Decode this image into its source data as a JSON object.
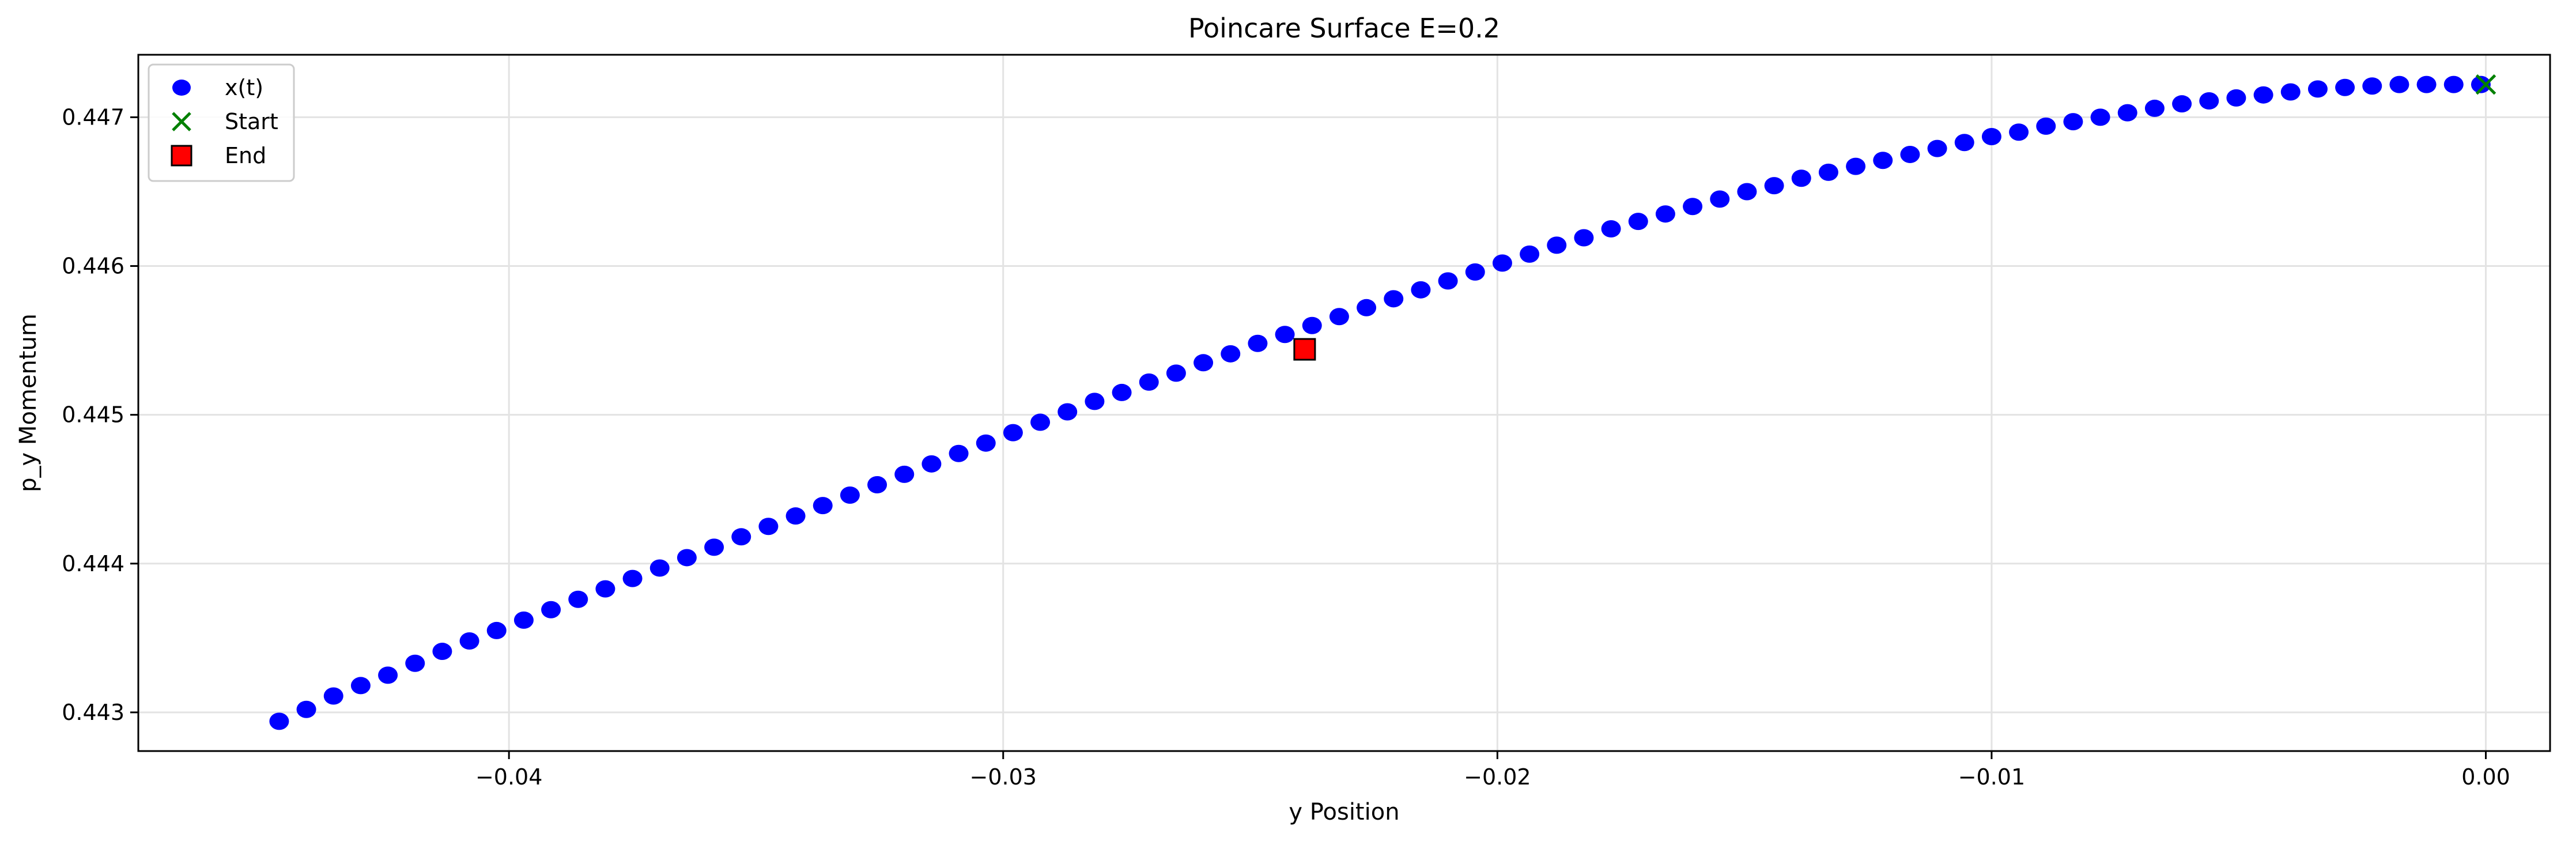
{
  "chart_data": {
    "type": "scatter",
    "title": "Poincare Surface E=0.2",
    "xlabel": "y Position",
    "ylabel": "p_y Momentum",
    "xlim": [
      -0.0475,
      0.0013
    ],
    "ylim": [
      0.44274,
      0.44742
    ],
    "xticks": [
      -0.04,
      -0.03,
      -0.02,
      -0.01,
      0.0
    ],
    "xtick_labels": [
      "−0.04",
      "−0.03",
      "−0.02",
      "−0.01",
      "0.00"
    ],
    "yticks": [
      0.443,
      0.444,
      0.445,
      0.446,
      0.447
    ],
    "ytick_labels": [
      "0.443",
      "0.444",
      "0.445",
      "0.446",
      "0.447"
    ],
    "grid": true,
    "legend_position": "upper-left",
    "series": [
      {
        "name": "x(t)",
        "marker": "circle",
        "color": "#0000ff",
        "x": [
          -0.04465,
          -0.0441,
          -0.04355,
          -0.043,
          -0.04245,
          -0.0419,
          -0.04135,
          -0.0408,
          -0.04025,
          -0.0397,
          -0.03915,
          -0.0386,
          -0.03805,
          -0.0375,
          -0.03695,
          -0.0364,
          -0.03585,
          -0.0353,
          -0.03475,
          -0.0342,
          -0.03365,
          -0.0331,
          -0.03255,
          -0.032,
          -0.03145,
          -0.0309,
          -0.03035,
          -0.0298,
          -0.02925,
          -0.0287,
          -0.02815,
          -0.0276,
          -0.02705,
          -0.0265,
          -0.02595,
          -0.0254,
          -0.02485,
          -0.0243,
          -0.02375,
          -0.0232,
          -0.02265,
          -0.0221,
          -0.02155,
          -0.021,
          -0.02045,
          -0.0199,
          -0.01935,
          -0.0188,
          -0.01825,
          -0.0177,
          -0.01715,
          -0.0166,
          -0.01605,
          -0.0155,
          -0.01495,
          -0.0144,
          -0.01385,
          -0.0133,
          -0.01275,
          -0.0122,
          -0.01165,
          -0.0111,
          -0.01055,
          -0.01,
          -0.00945,
          -0.0089,
          -0.00835,
          -0.0078,
          -0.00725,
          -0.0067,
          -0.00615,
          -0.0056,
          -0.00505,
          -0.0045,
          -0.00395,
          -0.0034,
          -0.00285,
          -0.0023,
          -0.00175,
          -0.0012,
          -0.00065,
          -0.0001
        ],
        "y": [
          0.44294,
          0.44302,
          0.44311,
          0.44318,
          0.44325,
          0.44333,
          0.44341,
          0.44348,
          0.44355,
          0.44362,
          0.44369,
          0.44376,
          0.44383,
          0.4439,
          0.44397,
          0.44404,
          0.44411,
          0.44418,
          0.44425,
          0.44432,
          0.44439,
          0.44446,
          0.44453,
          0.4446,
          0.44467,
          0.44474,
          0.44481,
          0.44488,
          0.44495,
          0.44502,
          0.44509,
          0.44515,
          0.44522,
          0.44528,
          0.44535,
          0.44541,
          0.44548,
          0.44554,
          0.4456,
          0.44566,
          0.44572,
          0.44578,
          0.44584,
          0.4459,
          0.44596,
          0.44602,
          0.44608,
          0.44614,
          0.44619,
          0.44625,
          0.4463,
          0.44635,
          0.4464,
          0.44645,
          0.4465,
          0.44654,
          0.44659,
          0.44663,
          0.44667,
          0.44671,
          0.44675,
          0.44679,
          0.44683,
          0.44687,
          0.4469,
          0.44694,
          0.44697,
          0.447,
          0.44703,
          0.44706,
          0.44709,
          0.44711,
          0.44713,
          0.44715,
          0.44717,
          0.44719,
          0.4472,
          0.44721,
          0.44722,
          0.44722,
          0.44722,
          0.44722
        ]
      },
      {
        "name": "Start",
        "marker": "x",
        "color": "#008000",
        "x": [
          0.0
        ],
        "y": [
          0.44722
        ]
      },
      {
        "name": "End",
        "marker": "square",
        "color": "#ff0000",
        "x": [
          -0.0239
        ],
        "y": [
          0.44544
        ]
      }
    ]
  }
}
